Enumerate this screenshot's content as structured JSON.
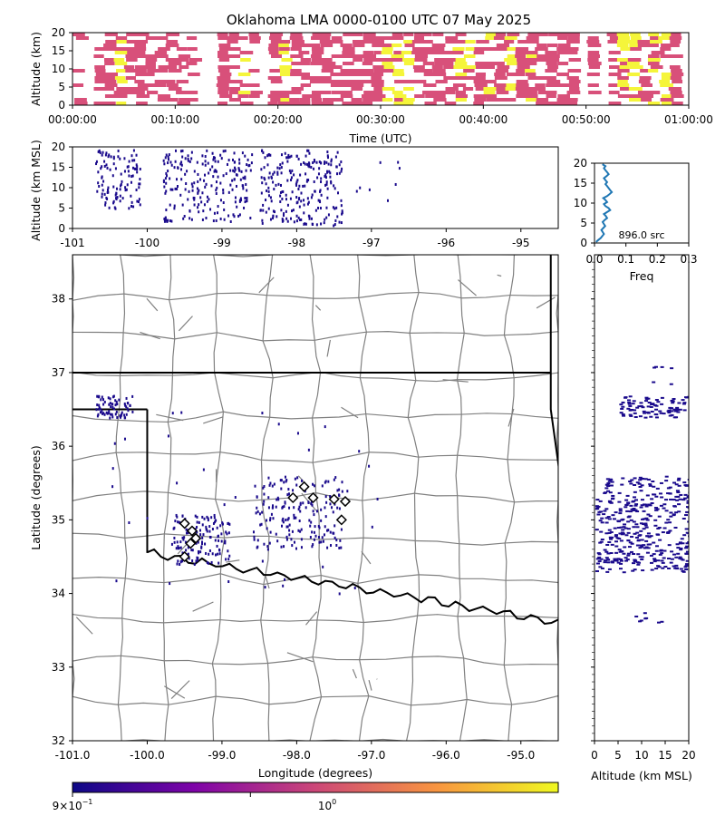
{
  "title": "Oklahoma LMA 0000-0100 UTC 07 May 2025",
  "colors": {
    "source_dot": "#1a0a8c",
    "county_line": "#808080",
    "state_line": "#000000",
    "profile_line": "#1f77b4",
    "heat_low": "#d8507a",
    "heat_high": "#f5f53a",
    "station_fill": "#ffffff"
  },
  "chart_data": [
    {
      "id": "time_height",
      "type": "heatmap",
      "xlabel": "Time (UTC)",
      "ylabel": "Altitude (km)",
      "xlim": [
        "00:00:00",
        "01:00:00"
      ],
      "ylim": [
        0,
        20
      ],
      "xticks": [
        "00:00:00",
        "00:10:00",
        "00:20:00",
        "00:30:00",
        "00:40:00",
        "00:50:00",
        "01:00:00"
      ],
      "yticks": [
        0,
        5,
        10,
        15,
        20
      ],
      "active_minutes": [
        0,
        2,
        3,
        4,
        5,
        6,
        7,
        8,
        9,
        10,
        11,
        14,
        15,
        16,
        17,
        19,
        20,
        21,
        22,
        23,
        24,
        25,
        26,
        27,
        28,
        29,
        30,
        31,
        32,
        33,
        34,
        35,
        36,
        37,
        38,
        39,
        40,
        41,
        42,
        43,
        44,
        45,
        46,
        47,
        48,
        50,
        52,
        53,
        54,
        55,
        56,
        57,
        58
      ],
      "bright_minutes": [
        4,
        16,
        20,
        30,
        31,
        32,
        37,
        38,
        40,
        42,
        44,
        49,
        51,
        53,
        54,
        56,
        57
      ],
      "altitude_range_km": [
        0,
        20
      ]
    },
    {
      "id": "lon_alt",
      "type": "scatter",
      "ylabel": "Altitude (km MSL)",
      "xlim": [
        -101,
        -94.5
      ],
      "ylim": [
        0,
        20
      ],
      "xticks": [
        -101,
        -100,
        -99,
        -98,
        -97,
        -96,
        -95
      ],
      "yticks": [
        0,
        5,
        10,
        15,
        20
      ],
      "clusters": [
        {
          "lon_range": [
            -100.7,
            -100.1
          ],
          "alt_range": [
            5,
            19.5
          ],
          "n": 110
        },
        {
          "lon_range": [
            -99.8,
            -98.6
          ],
          "alt_range": [
            2,
            19.5
          ],
          "n": 220
        },
        {
          "lon_range": [
            -98.5,
            -97.4
          ],
          "alt_range": [
            1,
            19.5
          ],
          "n": 240
        },
        {
          "lon_range": [
            -97.4,
            -96.6
          ],
          "alt_range": [
            7,
            17
          ],
          "n": 8
        }
      ]
    },
    {
      "id": "alt_hist",
      "type": "line",
      "xlabel": "Freq",
      "xlim": [
        0,
        0.3
      ],
      "ylim": [
        0,
        20
      ],
      "xticks": [
        0.0,
        0.1,
        0.2,
        0.3
      ],
      "yticks": [
        0,
        5,
        10,
        15,
        20
      ],
      "annotation": "896.0 src",
      "freq": [
        0.005,
        0.012,
        0.02,
        0.025,
        0.03,
        0.026,
        0.022,
        0.028,
        0.034,
        0.03,
        0.026,
        0.032,
        0.04,
        0.036,
        0.03,
        0.04,
        0.05,
        0.045,
        0.035,
        0.03,
        0.04,
        0.035,
        0.028,
        0.04,
        0.048,
        0.055,
        0.05,
        0.045,
        0.04,
        0.035,
        0.04,
        0.035,
        0.03,
        0.038,
        0.045,
        0.04,
        0.035,
        0.03,
        0.035,
        0.025
      ],
      "alt_km": [
        0.25,
        0.75,
        1.25,
        1.75,
        2.25,
        2.75,
        3.25,
        3.75,
        4.25,
        4.75,
        5.25,
        5.75,
        6.25,
        6.75,
        7.25,
        7.75,
        8.25,
        8.75,
        9.25,
        9.75,
        10.25,
        10.75,
        11.25,
        11.75,
        12.25,
        12.75,
        13.25,
        13.75,
        14.25,
        14.75,
        15.25,
        15.75,
        16.25,
        16.75,
        17.25,
        17.75,
        18.25,
        18.75,
        19.25,
        19.75
      ]
    },
    {
      "id": "plan_view",
      "type": "scatter",
      "xlabel": "Longitude (degrees)",
      "ylabel": "Latitude (degrees)",
      "xlim": [
        -101.0,
        -94.5
      ],
      "ylim": [
        32,
        38.6
      ],
      "xticks": [
        "-101.0",
        "-100.0",
        "-99.0",
        "-98.0",
        "-97.0",
        "-96.0",
        "-95.0"
      ],
      "yticks": [
        32,
        33,
        34,
        35,
        36,
        37,
        38
      ],
      "clusters": [
        {
          "lon_range": [
            -100.7,
            -100.2
          ],
          "lat_range": [
            36.4,
            36.7
          ],
          "n": 70
        },
        {
          "lon_range": [
            -99.7,
            -98.9
          ],
          "lat_range": [
            34.4,
            35.1
          ],
          "n": 140
        },
        {
          "lon_range": [
            -98.6,
            -97.4
          ],
          "lat_range": [
            34.6,
            35.6
          ],
          "n": 180
        },
        {
          "lon_range": [
            -100.5,
            -96.8
          ],
          "lat_range": [
            34.0,
            36.5
          ],
          "n": 40
        }
      ],
      "stations": [
        {
          "lon": -99.5,
          "lat": 34.95
        },
        {
          "lon": -99.4,
          "lat": 34.85
        },
        {
          "lon": -99.35,
          "lat": 34.75
        },
        {
          "lon": -99.42,
          "lat": 34.68
        },
        {
          "lon": -99.5,
          "lat": 34.5
        },
        {
          "lon": -98.05,
          "lat": 35.3
        },
        {
          "lon": -97.9,
          "lat": 35.45
        },
        {
          "lon": -97.78,
          "lat": 35.3
        },
        {
          "lon": -97.5,
          "lat": 35.28
        },
        {
          "lon": -97.35,
          "lat": 35.25
        },
        {
          "lon": -97.4,
          "lat": 35.0
        }
      ]
    },
    {
      "id": "alt_lat",
      "type": "scatter",
      "xlabel": "Altitude (km MSL)",
      "xlim": [
        0,
        20
      ],
      "ylim": [
        32,
        38.6
      ],
      "xticks": [
        0,
        5,
        10,
        15,
        20
      ],
      "clusters": [
        {
          "alt_range": [
            5,
            20
          ],
          "lat_range": [
            36.4,
            36.7
          ],
          "n": 90
        },
        {
          "alt_range": [
            0,
            20
          ],
          "lat_range": [
            34.3,
            35.6
          ],
          "n": 420
        },
        {
          "alt_range": [
            6,
            14
          ],
          "lat_range": [
            33.6,
            33.8
          ],
          "n": 8
        },
        {
          "alt_range": [
            12,
            18
          ],
          "lat_range": [
            36.8,
            37.1
          ],
          "n": 6
        }
      ]
    },
    {
      "id": "colorbar",
      "type": "colorbar",
      "scale": "log",
      "labels": [
        {
          "base": "9",
          "mult": "×",
          "power": "10",
          "exp": "−1"
        },
        {
          "base": "",
          "mult": "",
          "power": "10",
          "exp": "0"
        }
      ],
      "label_values": [
        0.9,
        1.0
      ],
      "vmin": 0.9,
      "vmax": 1.2
    }
  ]
}
